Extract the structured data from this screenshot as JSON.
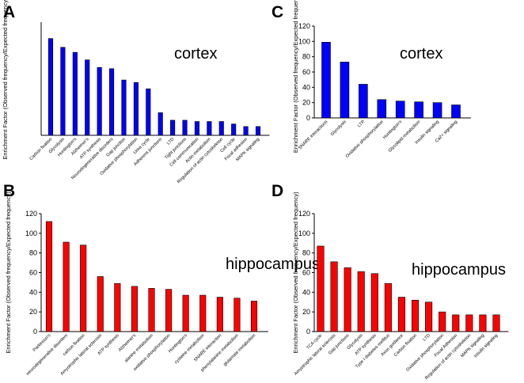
{
  "chart_data": [
    {
      "panel": "A",
      "type": "bar",
      "annotation": "cortex",
      "ylabel": "Enrichment Factor (Observed frequency/Expected frequency)",
      "color": "#0000ff",
      "ylim": [
        0,
        90
      ],
      "yticks": [],
      "categories": [
        "Carbon fixation",
        "Glycolysis",
        "Huntington's",
        "Alzheimer's",
        "ATP synthesis",
        "Neurodegenerative disorders",
        "Gap junction",
        "Oxidative phosphorylation",
        "Urea cycle",
        "Adherens junctions",
        "LTD",
        "Tight junctions",
        "Cell communication",
        "Actin metabolism",
        "Regulation of actin cytoskeleton",
        "Cell cycle",
        "Focal adhesion",
        "MAPK signaling"
      ],
      "values": [
        77,
        70,
        66,
        60,
        54,
        53,
        44,
        42,
        37,
        18,
        12,
        12,
        11,
        11,
        11,
        9,
        7,
        7
      ]
    },
    {
      "panel": "B",
      "type": "bar",
      "annotation": "hippocampus",
      "ylabel": "Enrichment Factor (Observed frequency/Expected frequency)",
      "color": "#ff0000",
      "ylim": [
        0,
        120
      ],
      "yticks": [
        "0",
        "20",
        "40",
        "60",
        "80",
        "100",
        "120"
      ],
      "categories": [
        "Parkinson's",
        "neurodegenerative disorders",
        "carbon fixation",
        "Amyotrophic lateral sclerosis",
        "ATP synthesis",
        "Alzheimer's",
        "alanine metabolism",
        "oxidative phosphorylation",
        "Huntington's",
        "cysteine metabolism",
        "SNARE interaction",
        "phenylalanine metabolism",
        "glutamate metabolism"
      ],
      "values": [
        112,
        91,
        88,
        56,
        49,
        46,
        44,
        43,
        37,
        37,
        35,
        34,
        31
      ]
    },
    {
      "panel": "C",
      "type": "bar",
      "annotation": "cortex",
      "ylabel": "Enrichment Factor (Observed frequency/Expected frequency)",
      "color": "#0000ff",
      "ylim": [
        0,
        120
      ],
      "yticks": [
        "0",
        "20",
        "40",
        "60",
        "80",
        "100",
        "120"
      ],
      "categories": [
        "SNARE interactions",
        "Glycolysis",
        "LTP",
        "Oxidative phosphorylation",
        "Huntington's",
        "Glycolipid metabolism",
        "Insulin signaling",
        "Ca2+ signaling"
      ],
      "values": [
        99,
        73,
        44,
        24,
        22,
        21,
        20,
        17
      ]
    },
    {
      "panel": "D",
      "type": "bar",
      "annotation": "hippocampus",
      "ylabel": "Enrichment Factor (Observed frequency/Expected frequency)",
      "color": "#ff0000",
      "ylim": [
        0,
        120
      ],
      "yticks": [
        "0",
        "20",
        "40",
        "60",
        "80",
        "100",
        "120"
      ],
      "categories": [
        "TCA cycle",
        "Amyotrophic lateral sclerosis",
        "Gap junctions",
        "Glycolysis",
        "ATP synthesis",
        "Type I diabetes mellitus",
        "Axon guidance",
        "Carbon fixation",
        "LTD",
        "Oxidative phosphorylation",
        "Focal Adhesion",
        "Regulation of actin cytoskeleton",
        "MAPK signaling",
        "Insulin signaling"
      ],
      "values": [
        87,
        71,
        65,
        61,
        59,
        49,
        35,
        32,
        30,
        20,
        17,
        17,
        17,
        17
      ]
    }
  ]
}
